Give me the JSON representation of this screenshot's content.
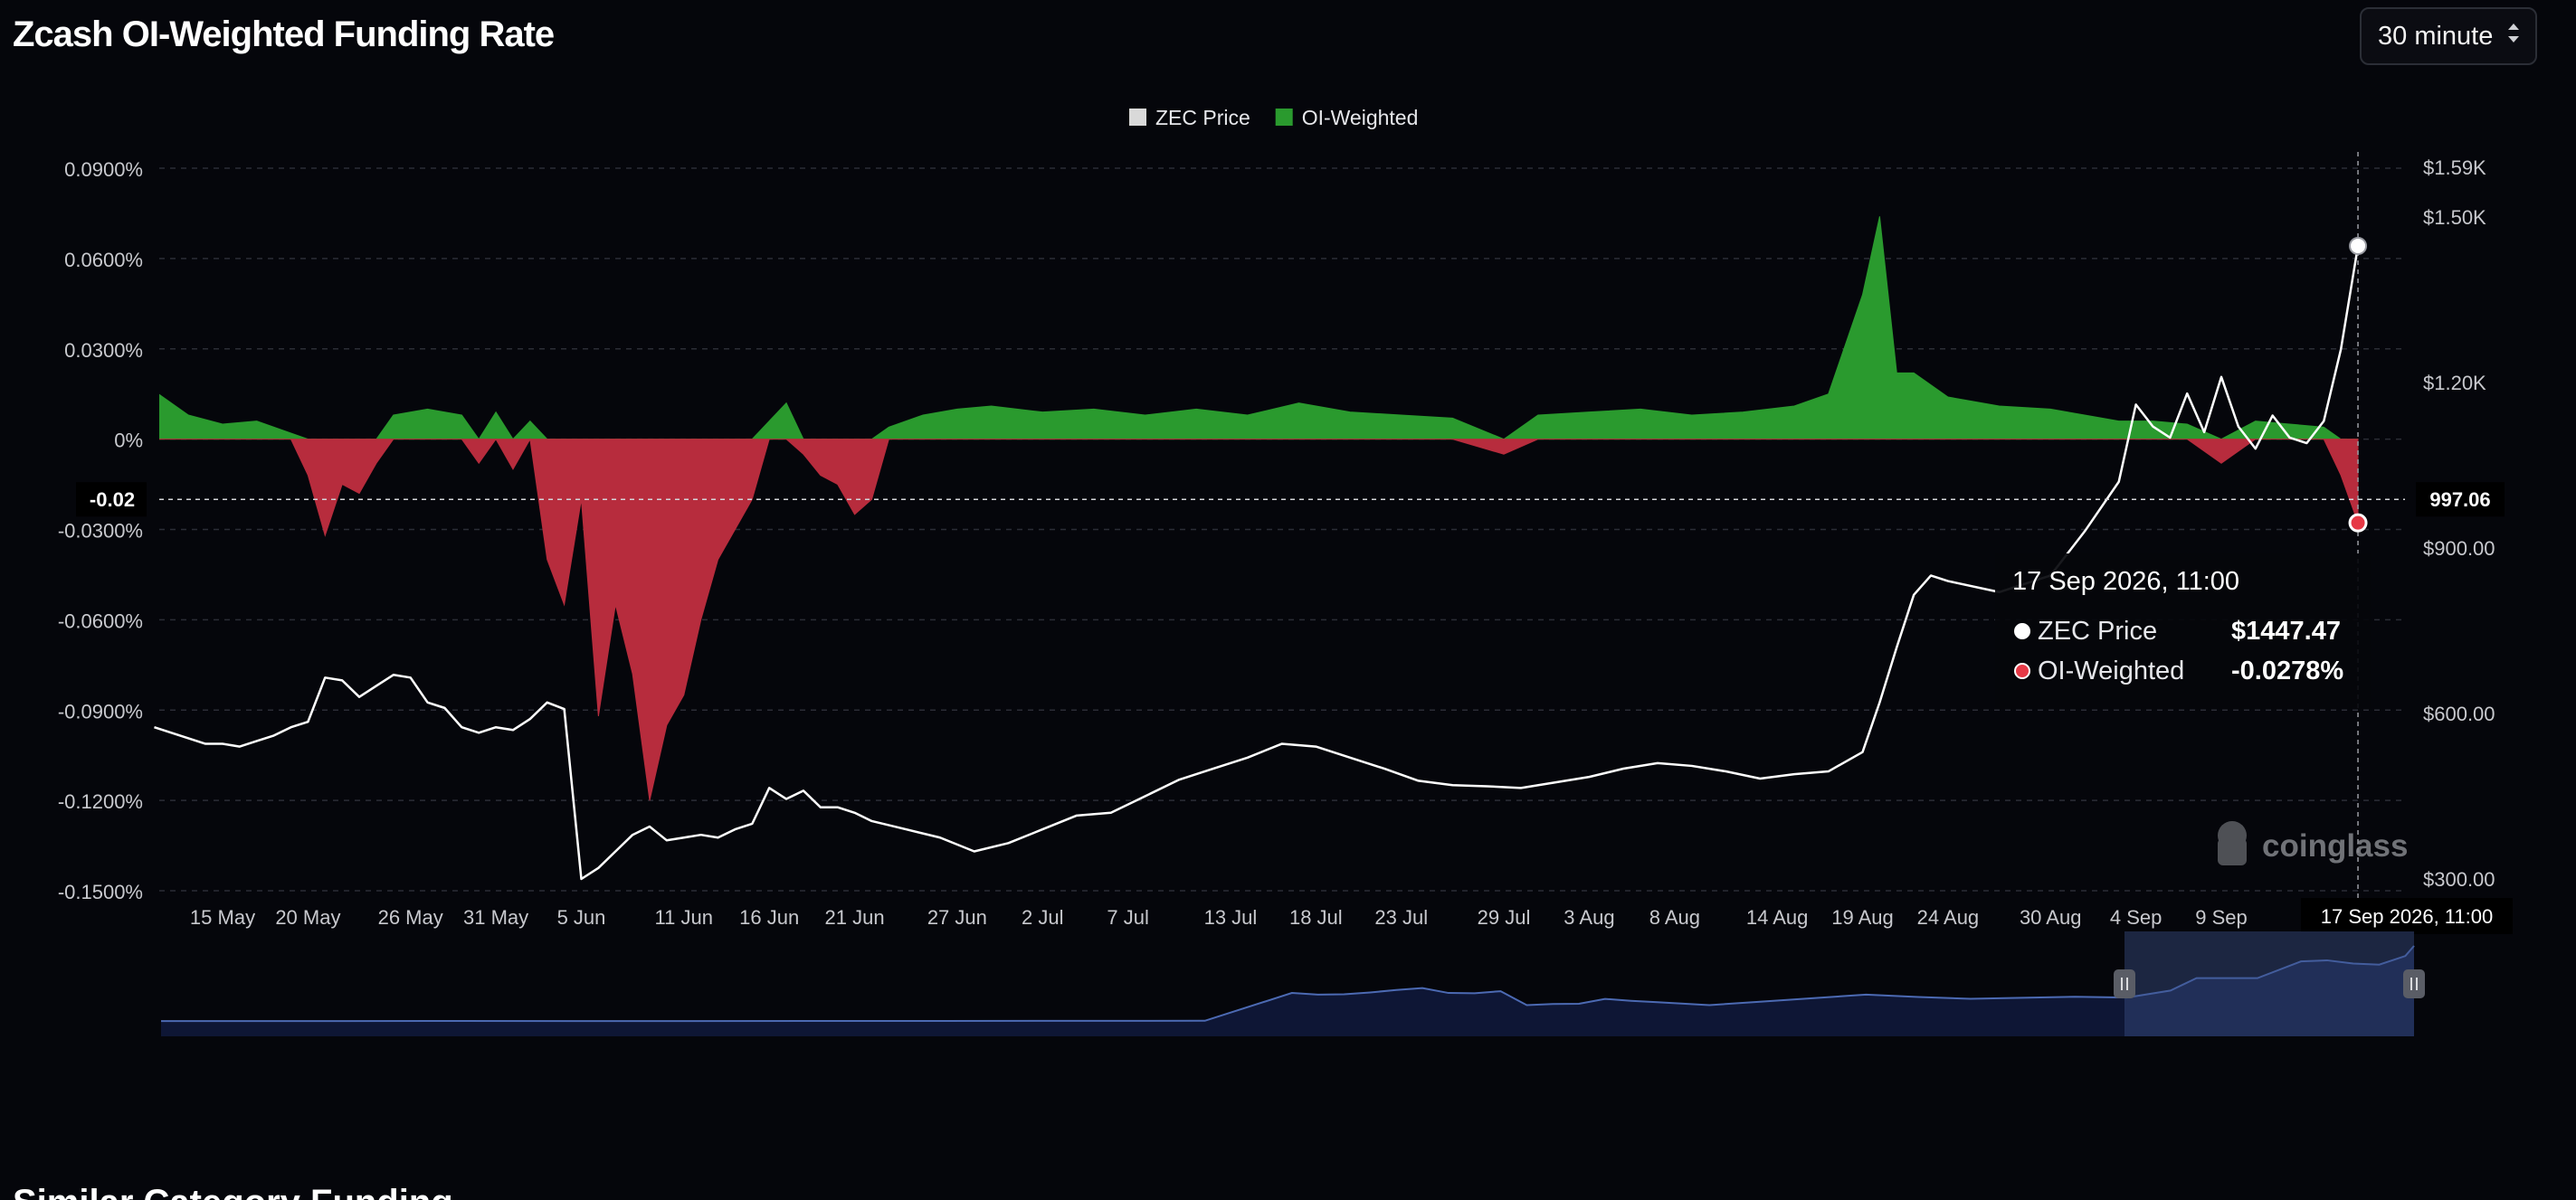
{
  "header": {
    "title": "Zcash OI-Weighted Funding Rate",
    "interval_label": "30 minute"
  },
  "legend": [
    {
      "label": "ZEC Price",
      "color": "#d9d9d9"
    },
    {
      "label": "OI-Weighted",
      "color": "#2a9a2e"
    }
  ],
  "tooltip": {
    "date": "17 Sep 2026, 11:00",
    "rows": [
      {
        "label": "ZEC Price",
        "value": "$1447.47",
        "dot_color": "#ffffff"
      },
      {
        "label": "OI-Weighted",
        "value": "-0.0278%",
        "dot_color": "#e63946"
      }
    ]
  },
  "crosshair": {
    "left_label": "-0.02",
    "right_label": "997.06",
    "date_label": "17 Sep 2026, 11:00"
  },
  "watermark": "coinglass",
  "next_section_heading": "Similar Category Funding",
  "colors": {
    "positive": "#2a9a2e",
    "negative": "#b72c3d",
    "price_line": "#ffffff",
    "grid": "#2b2d36",
    "axis_text": "#c8c9ce",
    "navigator_line": "#4c6ab3"
  },
  "chart_data": {
    "type": "line",
    "title": "Zcash OI-Weighted Funding Rate",
    "x_tick_labels": [
      "15 May",
      "20 May",
      "26 May",
      "31 May",
      "5 Jun",
      "11 Jun",
      "16 Jun",
      "21 Jun",
      "27 Jun",
      "2 Jul",
      "7 Jul",
      "13 Jul",
      "18 Jul",
      "23 Jul",
      "29 Jul",
      "3 Aug",
      "8 Aug",
      "14 Aug",
      "19 Aug",
      "24 Aug",
      "30 Aug",
      "4 Sep",
      "9 Sep"
    ],
    "y_left": {
      "unit": "%",
      "range": [
        -0.15,
        0.09
      ],
      "ticks": [
        "0.0900%",
        "0.0600%",
        "0.0300%",
        "0%",
        "-0.0300%",
        "-0.0600%",
        "-0.0900%",
        "-0.1200%",
        "-0.1500%"
      ],
      "tick_values": [
        0.09,
        0.06,
        0.03,
        0,
        -0.03,
        -0.06,
        -0.09,
        -0.12,
        -0.15
      ]
    },
    "y_right": {
      "range": [
        300,
        1590
      ],
      "ticks": [
        "$1.59K",
        "$1.50K",
        "$1.20K",
        "$900.00",
        "$600.00",
        "$300.00"
      ],
      "tick_values": [
        1590,
        1500,
        1200,
        900,
        600,
        300
      ]
    },
    "grid": true,
    "legend_position": "top-center",
    "series": [
      {
        "name": "OI-Weighted",
        "axis": "left",
        "style": "area",
        "points": [
          [
            "11 May",
            0.016
          ],
          [
            "13 May",
            0.008
          ],
          [
            "15 May",
            0.005
          ],
          [
            "17 May",
            0.006
          ],
          [
            "19 May",
            0.002
          ],
          [
            "20 May",
            -0.012
          ],
          [
            "21 May",
            -0.032
          ],
          [
            "22 May",
            -0.015
          ],
          [
            "23 May",
            -0.018
          ],
          [
            "24 May",
            -0.008
          ],
          [
            "25 May",
            0.008
          ],
          [
            "27 May",
            0.01
          ],
          [
            "29 May",
            0.008
          ],
          [
            "30 May",
            -0.008
          ],
          [
            "31 May",
            0.009
          ],
          [
            "1 Jun",
            -0.01
          ],
          [
            "2 Jun",
            0.006
          ],
          [
            "3 Jun",
            -0.04
          ],
          [
            "4 Jun",
            -0.055
          ],
          [
            "5 Jun",
            -0.02
          ],
          [
            "6 Jun",
            -0.092
          ],
          [
            "7 Jun",
            -0.055
          ],
          [
            "8 Jun",
            -0.078
          ],
          [
            "9 Jun",
            -0.12
          ],
          [
            "10 Jun",
            -0.095
          ],
          [
            "11 Jun",
            -0.085
          ],
          [
            "12 Jun",
            -0.06
          ],
          [
            "13 Jun",
            -0.04
          ],
          [
            "14 Jun",
            -0.03
          ],
          [
            "15 Jun",
            -0.02
          ],
          [
            "16 Jun",
            0.006
          ],
          [
            "17 Jun",
            0.012
          ],
          [
            "18 Jun",
            -0.005
          ],
          [
            "19 Jun",
            -0.012
          ],
          [
            "20 Jun",
            -0.015
          ],
          [
            "21 Jun",
            -0.025
          ],
          [
            "22 Jun",
            -0.02
          ],
          [
            "23 Jun",
            0.004
          ],
          [
            "25 Jun",
            0.008
          ],
          [
            "27 Jun",
            0.01
          ],
          [
            "29 Jun",
            0.011
          ],
          [
            "2 Jul",
            0.009
          ],
          [
            "5 Jul",
            0.01
          ],
          [
            "8 Jul",
            0.008
          ],
          [
            "11 Jul",
            0.01
          ],
          [
            "14 Jul",
            0.008
          ],
          [
            "17 Jul",
            0.012
          ],
          [
            "20 Jul",
            0.009
          ],
          [
            "23 Jul",
            0.008
          ],
          [
            "26 Jul",
            0.007
          ],
          [
            "29 Jul",
            -0.005
          ],
          [
            "31 Jul",
            0.008
          ],
          [
            "3 Aug",
            0.009
          ],
          [
            "6 Aug",
            0.01
          ],
          [
            "9 Aug",
            0.008
          ],
          [
            "12 Aug",
            0.009
          ],
          [
            "15 Aug",
            0.011
          ],
          [
            "17 Aug",
            0.015
          ],
          [
            "19 Aug",
            0.048
          ],
          [
            "20 Aug",
            0.074
          ],
          [
            "21 Aug",
            0.022
          ],
          [
            "22 Aug",
            0.022
          ],
          [
            "24 Aug",
            0.014
          ],
          [
            "27 Aug",
            0.011
          ],
          [
            "30 Aug",
            0.01
          ],
          [
            "1 Sep",
            0.008
          ],
          [
            "3 Sep",
            0.006
          ],
          [
            "5 Sep",
            0.006
          ],
          [
            "7 Sep",
            0.005
          ],
          [
            "9 Sep",
            -0.008
          ],
          [
            "11 Sep",
            0.006
          ],
          [
            "13 Sep",
            0.005
          ],
          [
            "15 Sep",
            0.004
          ],
          [
            "16 Sep",
            -0.012
          ],
          [
            "17 Sep",
            -0.0278
          ]
        ]
      },
      {
        "name": "ZEC Price",
        "axis": "right",
        "style": "line",
        "points": [
          [
            "11 May",
            575
          ],
          [
            "12 May",
            565
          ],
          [
            "13 May",
            555
          ],
          [
            "14 May",
            545
          ],
          [
            "15 May",
            545
          ],
          [
            "16 May",
            540
          ],
          [
            "17 May",
            550
          ],
          [
            "18 May",
            560
          ],
          [
            "19 May",
            575
          ],
          [
            "20 May",
            585
          ],
          [
            "21 May",
            665
          ],
          [
            "22 May",
            660
          ],
          [
            "23 May",
            630
          ],
          [
            "24 May",
            650
          ],
          [
            "25 May",
            670
          ],
          [
            "26 May",
            665
          ],
          [
            "27 May",
            620
          ],
          [
            "28 May",
            610
          ],
          [
            "29 May",
            575
          ],
          [
            "30 May",
            565
          ],
          [
            "31 May",
            575
          ],
          [
            "1 Jun",
            570
          ],
          [
            "2 Jun",
            590
          ],
          [
            "3 Jun",
            620
          ],
          [
            "4 Jun",
            608
          ],
          [
            "5 Jun",
            300
          ],
          [
            "6 Jun",
            320
          ],
          [
            "7 Jun",
            350
          ],
          [
            "8 Jun",
            380
          ],
          [
            "9 Jun",
            395
          ],
          [
            "10 Jun",
            370
          ],
          [
            "11 Jun",
            375
          ],
          [
            "12 Jun",
            380
          ],
          [
            "13 Jun",
            375
          ],
          [
            "14 Jun",
            390
          ],
          [
            "15 Jun",
            400
          ],
          [
            "16 Jun",
            465
          ],
          [
            "17 Jun",
            445
          ],
          [
            "18 Jun",
            460
          ],
          [
            "19 Jun",
            430
          ],
          [
            "20 Jun",
            430
          ],
          [
            "21 Jun",
            420
          ],
          [
            "22 Jun",
            405
          ],
          [
            "24 Jun",
            390
          ],
          [
            "26 Jun",
            375
          ],
          [
            "28 Jun",
            350
          ],
          [
            "30 Jun",
            365
          ],
          [
            "2 Jul",
            390
          ],
          [
            "4 Jul",
            415
          ],
          [
            "6 Jul",
            420
          ],
          [
            "8 Jul",
            450
          ],
          [
            "10 Jul",
            480
          ],
          [
            "12 Jul",
            500
          ],
          [
            "14 Jul",
            520
          ],
          [
            "16 Jul",
            545
          ],
          [
            "18 Jul",
            540
          ],
          [
            "20 Jul",
            520
          ],
          [
            "22 Jul",
            500
          ],
          [
            "24 Jul",
            478
          ],
          [
            "26 Jul",
            470
          ],
          [
            "28 Jul",
            468
          ],
          [
            "30 Jul",
            465
          ],
          [
            "1 Aug",
            475
          ],
          [
            "3 Aug",
            485
          ],
          [
            "5 Aug",
            500
          ],
          [
            "7 Aug",
            510
          ],
          [
            "9 Aug",
            505
          ],
          [
            "11 Aug",
            495
          ],
          [
            "13 Aug",
            482
          ],
          [
            "15 Aug",
            490
          ],
          [
            "17 Aug",
            495
          ],
          [
            "19 Aug",
            530
          ],
          [
            "20 Aug",
            620
          ],
          [
            "21 Aug",
            720
          ],
          [
            "22 Aug",
            815
          ],
          [
            "23 Aug",
            850
          ],
          [
            "24 Aug",
            840
          ],
          [
            "27 Aug",
            820
          ],
          [
            "30 Aug",
            850
          ],
          [
            "1 Sep",
            930
          ],
          [
            "3 Sep",
            1020
          ],
          [
            "4 Sep",
            1160
          ],
          [
            "5 Sep",
            1120
          ],
          [
            "6 Sep",
            1100
          ],
          [
            "7 Sep",
            1180
          ],
          [
            "8 Sep",
            1110
          ],
          [
            "9 Sep",
            1210
          ],
          [
            "10 Sep",
            1120
          ],
          [
            "11 Sep",
            1080
          ],
          [
            "12 Sep",
            1140
          ],
          [
            "13 Sep",
            1100
          ],
          [
            "14 Sep",
            1090
          ],
          [
            "15 Sep",
            1130
          ],
          [
            "16 Sep",
            1260
          ],
          [
            "17 Sep",
            1447.47
          ]
        ]
      }
    ]
  }
}
